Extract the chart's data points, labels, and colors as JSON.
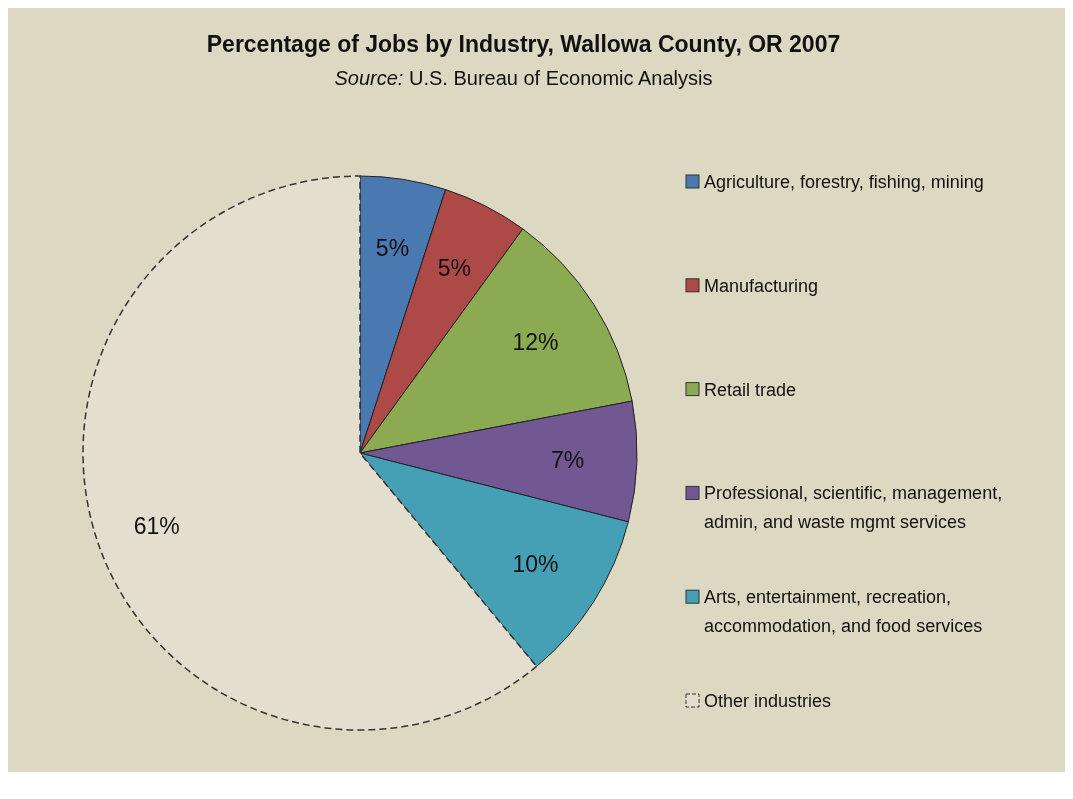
{
  "chart_data": {
    "type": "pie",
    "title": "Percentage of Jobs by Industry, Wallowa County, OR 2007",
    "annotations": [
      "Source: U.S. Bureau of Economic Analysis"
    ],
    "categories": [
      "Agriculture, forestry, fishing, mining",
      "Manufacturing",
      "Retail trade",
      "Professional, scientific, management, admin, and waste mgmt services",
      "Arts, entertainment, recreation, accommodation, and food services",
      "Other industries"
    ],
    "values": [
      5,
      5,
      12,
      7,
      10,
      61
    ],
    "colors": [
      "#4a78b0",
      "#ad4946",
      "#8caa52",
      "#725893",
      "#45a0b6",
      "#e3dece"
    ],
    "value_labels": [
      "5%",
      "5%",
      "12%",
      "7%",
      "10%",
      "61%"
    ],
    "legend": "right"
  }
}
